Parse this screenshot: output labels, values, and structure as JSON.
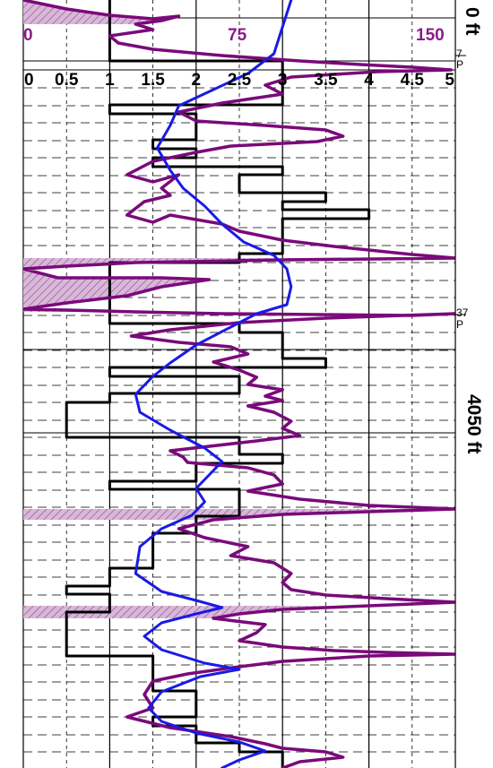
{
  "colors": {
    "sonic_curve": "#7a0a7a",
    "sonic_fill": "#c9a0c9",
    "sonic_hatch": "#a070a0",
    "blue_curve": "#1a1ae6",
    "step_curve": "#000000",
    "grid": "#000000"
  },
  "depth_track": {
    "top_label": "0 ft",
    "mid_label": "4050 ft"
  },
  "markers": [
    {
      "line1": "7",
      "line2": "P"
    },
    {
      "line1": "37",
      "line2": "P"
    }
  ],
  "chart_data": {
    "type": "line",
    "xlim": [
      0,
      5
    ],
    "ylim": [
      0,
      857
    ],
    "x_ticks": [
      "0",
      "0.5",
      "1",
      "1.5",
      "2",
      "2.5",
      "3",
      "3.5",
      "4",
      "4.5",
      "5"
    ],
    "purple_scale": {
      "labels": [
        "0",
        "75",
        "150"
      ],
      "range": [
        0,
        150
      ]
    },
    "grid": true,
    "series": [
      {
        "key": "step",
        "color": "#000000",
        "points": [
          [
            1.0,
            0
          ],
          [
            1.0,
            68
          ],
          [
            3.0,
            68
          ],
          [
            3.0,
            78
          ],
          [
            3.0,
            88
          ],
          [
            3.0,
            98
          ],
          [
            3.0,
            108
          ],
          [
            3.0,
            117
          ],
          [
            1.0,
            117
          ],
          [
            1.0,
            127
          ],
          [
            2.0,
            127
          ],
          [
            2.0,
            137
          ],
          [
            2.0,
            146
          ],
          [
            2.0,
            156
          ],
          [
            1.5,
            156
          ],
          [
            1.5,
            166
          ],
          [
            2.0,
            166
          ],
          [
            2.0,
            176
          ],
          [
            1.5,
            176
          ],
          [
            1.5,
            186
          ],
          [
            3.0,
            186
          ],
          [
            3.0,
            195
          ],
          [
            2.5,
            195
          ],
          [
            2.5,
            205
          ],
          [
            2.5,
            215
          ],
          [
            3.5,
            215
          ],
          [
            3.5,
            225
          ],
          [
            3.0,
            225
          ],
          [
            3.0,
            234
          ],
          [
            4.0,
            234
          ],
          [
            4.0,
            244
          ],
          [
            3.0,
            244
          ],
          [
            3.0,
            254
          ],
          [
            3.0,
            264
          ],
          [
            3.0,
            273
          ],
          [
            3.0,
            283
          ],
          [
            2.5,
            283
          ],
          [
            2.5,
            293
          ],
          [
            1.0,
            293
          ],
          [
            1.0,
            303
          ],
          [
            1.0,
            312
          ],
          [
            1.0,
            322
          ],
          [
            1.0,
            332
          ],
          [
            1.0,
            342
          ],
          [
            1.0,
            351
          ],
          [
            1.0,
            361
          ],
          [
            2.5,
            361
          ],
          [
            2.5,
            371
          ],
          [
            3.0,
            371
          ],
          [
            3.0,
            381
          ],
          [
            3.0,
            390
          ],
          [
            3.0,
            400
          ],
          [
            3.5,
            400
          ],
          [
            3.5,
            410
          ],
          [
            1.0,
            410
          ],
          [
            1.0,
            420
          ],
          [
            2.5,
            420
          ],
          [
            2.5,
            429
          ],
          [
            2.5,
            439
          ],
          [
            1.0,
            439
          ],
          [
            1.0,
            449
          ],
          [
            0.5,
            449
          ],
          [
            0.5,
            459
          ],
          [
            0.5,
            468
          ],
          [
            0.5,
            478
          ],
          [
            0.5,
            488
          ],
          [
            2.5,
            488
          ],
          [
            2.5,
            498
          ],
          [
            2.5,
            507
          ],
          [
            3.0,
            507
          ],
          [
            3.0,
            517
          ],
          [
            2.0,
            517
          ],
          [
            2.0,
            527
          ],
          [
            2.0,
            537
          ],
          [
            1.0,
            537
          ],
          [
            1.0,
            546
          ],
          [
            2.5,
            546
          ],
          [
            2.5,
            556
          ],
          [
            2.5,
            566
          ],
          [
            2.5,
            576
          ],
          [
            2.0,
            576
          ],
          [
            2.0,
            585
          ],
          [
            2.0,
            595
          ],
          [
            1.5,
            595
          ],
          [
            1.5,
            605
          ],
          [
            1.5,
            615
          ],
          [
            1.5,
            624
          ],
          [
            1.5,
            634
          ],
          [
            1.0,
            634
          ],
          [
            1.0,
            644
          ],
          [
            1.0,
            654
          ],
          [
            0.5,
            654
          ],
          [
            0.5,
            663
          ],
          [
            1.0,
            663
          ],
          [
            1.0,
            673
          ],
          [
            1.0,
            683
          ],
          [
            0.5,
            683
          ],
          [
            0.5,
            693
          ],
          [
            0.5,
            702
          ],
          [
            0.5,
            712
          ],
          [
            0.5,
            722
          ],
          [
            0.5,
            732
          ],
          [
            1.5,
            732
          ],
          [
            1.5,
            741
          ],
          [
            1.5,
            751
          ],
          [
            1.5,
            761
          ],
          [
            1.5,
            771
          ],
          [
            2.0,
            771
          ],
          [
            2.0,
            780
          ],
          [
            2.0,
            790
          ],
          [
            2.0,
            800
          ],
          [
            1.5,
            800
          ],
          [
            1.5,
            810
          ],
          [
            2.0,
            810
          ],
          [
            2.0,
            819
          ],
          [
            2.0,
            829
          ],
          [
            2.5,
            829
          ],
          [
            2.5,
            839
          ],
          [
            3.0,
            839
          ],
          [
            3.0,
            849
          ],
          [
            3.0,
            857
          ]
        ]
      },
      {
        "key": "blue",
        "color": "#1a1ae6",
        "points": [
          [
            3.1,
            0
          ],
          [
            3.0,
            30
          ],
          [
            2.9,
            60
          ],
          [
            2.6,
            82
          ],
          [
            2.2,
            100
          ],
          [
            1.8,
            118
          ],
          [
            1.7,
            140
          ],
          [
            1.55,
            165
          ],
          [
            1.7,
            190
          ],
          [
            1.85,
            210
          ],
          [
            2.1,
            230
          ],
          [
            2.3,
            250
          ],
          [
            2.55,
            270
          ],
          [
            2.9,
            285
          ],
          [
            3.05,
            300
          ],
          [
            3.1,
            320
          ],
          [
            3.05,
            340
          ],
          [
            2.7,
            350
          ],
          [
            2.4,
            365
          ],
          [
            2.0,
            385
          ],
          [
            1.7,
            405
          ],
          [
            1.5,
            420
          ],
          [
            1.3,
            440
          ],
          [
            1.35,
            460
          ],
          [
            1.7,
            480
          ],
          [
            2.1,
            500
          ],
          [
            2.3,
            515
          ],
          [
            2.15,
            530
          ],
          [
            2.0,
            545
          ],
          [
            2.1,
            560
          ],
          [
            1.95,
            575
          ],
          [
            1.6,
            590
          ],
          [
            1.35,
            610
          ],
          [
            1.3,
            640
          ],
          [
            1.6,
            660
          ],
          [
            2.0,
            670
          ],
          [
            2.3,
            678
          ],
          [
            2.0,
            685
          ],
          [
            1.6,
            695
          ],
          [
            1.4,
            710
          ],
          [
            1.6,
            725
          ],
          [
            2.1,
            740
          ],
          [
            2.5,
            747
          ],
          [
            2.05,
            755
          ],
          [
            1.6,
            772
          ],
          [
            1.45,
            790
          ],
          [
            1.6,
            805
          ],
          [
            2.0,
            818
          ],
          [
            2.5,
            828
          ],
          [
            2.8,
            838
          ],
          [
            2.5,
            848
          ],
          [
            2.3,
            857
          ]
        ]
      },
      {
        "key": "purple",
        "color": "#7a0a7a",
        "points": [
          [
            0.0,
            0
          ],
          [
            0.15,
            3
          ],
          [
            0.5,
            10
          ],
          [
            1.0,
            17
          ],
          [
            1.5,
            21
          ],
          [
            1.8,
            18
          ],
          [
            1.6,
            23
          ],
          [
            1.3,
            27
          ],
          [
            1.5,
            33
          ],
          [
            1.0,
            40
          ],
          [
            1.1,
            48
          ],
          [
            1.5,
            55
          ],
          [
            2.3,
            62
          ],
          [
            3.2,
            68
          ],
          [
            3.9,
            72
          ],
          [
            4.5,
            75
          ],
          [
            4.95,
            78
          ],
          [
            4.1,
            80
          ],
          [
            3.6,
            83
          ],
          [
            3.1,
            86
          ],
          [
            2.8,
            95
          ],
          [
            3.0,
            105
          ],
          [
            2.3,
            115
          ],
          [
            1.8,
            125
          ],
          [
            2.0,
            135
          ],
          [
            2.8,
            140
          ],
          [
            3.5,
            145
          ],
          [
            3.7,
            152
          ],
          [
            3.4,
            158
          ],
          [
            2.4,
            163
          ],
          [
            2.0,
            170
          ],
          [
            1.5,
            180
          ],
          [
            1.2,
            195
          ],
          [
            1.5,
            203
          ],
          [
            1.8,
            195
          ],
          [
            1.6,
            210
          ],
          [
            1.7,
            218
          ],
          [
            1.4,
            225
          ],
          [
            1.2,
            240
          ],
          [
            1.5,
            248
          ],
          [
            1.7,
            240
          ],
          [
            2.3,
            250
          ],
          [
            2.5,
            258
          ],
          [
            3.0,
            268
          ],
          [
            3.6,
            275
          ],
          [
            4.5,
            284
          ],
          [
            5.0,
            288
          ],
          [
            3.0,
            290
          ],
          [
            1.3,
            293
          ],
          [
            0.5,
            297
          ],
          [
            0.0,
            300
          ],
          [
            0.4,
            310
          ],
          [
            1.6,
            310
          ],
          [
            2.15,
            312
          ],
          [
            1.6,
            320
          ],
          [
            1.2,
            330
          ],
          [
            0.5,
            338
          ],
          [
            0.0,
            345
          ],
          [
            0.5,
            346
          ],
          [
            1.3,
            348
          ],
          [
            2.3,
            350
          ],
          [
            3.4,
            351
          ],
          [
            4.5,
            352
          ],
          [
            5.0,
            350
          ],
          [
            3.5,
            355
          ],
          [
            2.5,
            360
          ],
          [
            1.7,
            368
          ],
          [
            1.25,
            375
          ],
          [
            1.8,
            382
          ],
          [
            2.4,
            387
          ],
          [
            2.6,
            395
          ],
          [
            2.2,
            404
          ],
          [
            2.5,
            413
          ],
          [
            2.7,
            421
          ],
          [
            2.6,
            429
          ],
          [
            3.0,
            435
          ],
          [
            2.8,
            442
          ],
          [
            3.0,
            447
          ],
          [
            2.6,
            453
          ],
          [
            2.9,
            460
          ],
          [
            3.1,
            470
          ],
          [
            3.0,
            478
          ],
          [
            3.2,
            486
          ],
          [
            2.7,
            492
          ],
          [
            1.7,
            503
          ],
          [
            1.85,
            510
          ],
          [
            1.9,
            516
          ],
          [
            2.6,
            522
          ],
          [
            2.9,
            530
          ],
          [
            3.0,
            540
          ],
          [
            2.6,
            548
          ],
          [
            3.2,
            557
          ],
          [
            4.0,
            564
          ],
          [
            5.0,
            568
          ],
          [
            4.0,
            571
          ],
          [
            3.0,
            574
          ],
          [
            2.2,
            580
          ],
          [
            1.8,
            590
          ],
          [
            2.1,
            600
          ],
          [
            2.6,
            610
          ],
          [
            2.4,
            620
          ],
          [
            2.9,
            628
          ],
          [
            3.1,
            640
          ],
          [
            3.0,
            650
          ],
          [
            3.1,
            658
          ],
          [
            3.5,
            664
          ],
          [
            4.2,
            668
          ],
          [
            5.0,
            672
          ],
          [
            4.0,
            676
          ],
          [
            3.0,
            680
          ],
          [
            2.5,
            685
          ],
          [
            2.2,
            690
          ],
          [
            2.8,
            697
          ],
          [
            2.7,
            706
          ],
          [
            2.5,
            715
          ],
          [
            3.0,
            722
          ],
          [
            3.6,
            726
          ],
          [
            4.2,
            728
          ],
          [
            5.0,
            730
          ],
          [
            4.0,
            732
          ],
          [
            3.0,
            738
          ],
          [
            2.5,
            744
          ],
          [
            1.9,
            752
          ],
          [
            1.5,
            760
          ],
          [
            1.4,
            775
          ],
          [
            1.5,
            790
          ],
          [
            1.2,
            800
          ],
          [
            1.7,
            812
          ],
          [
            2.4,
            822
          ],
          [
            2.8,
            830
          ],
          [
            3.0,
            835
          ],
          [
            3.5,
            839
          ],
          [
            3.7,
            845
          ],
          [
            3.2,
            850
          ],
          [
            3.0,
            857
          ]
        ]
      }
    ],
    "shaded_intervals": [
      {
        "from": 0,
        "to": 30
      },
      {
        "from": 288,
        "to": 348
      },
      {
        "from": 568,
        "to": 580
      },
      {
        "from": 675,
        "to": 690
      }
    ]
  }
}
